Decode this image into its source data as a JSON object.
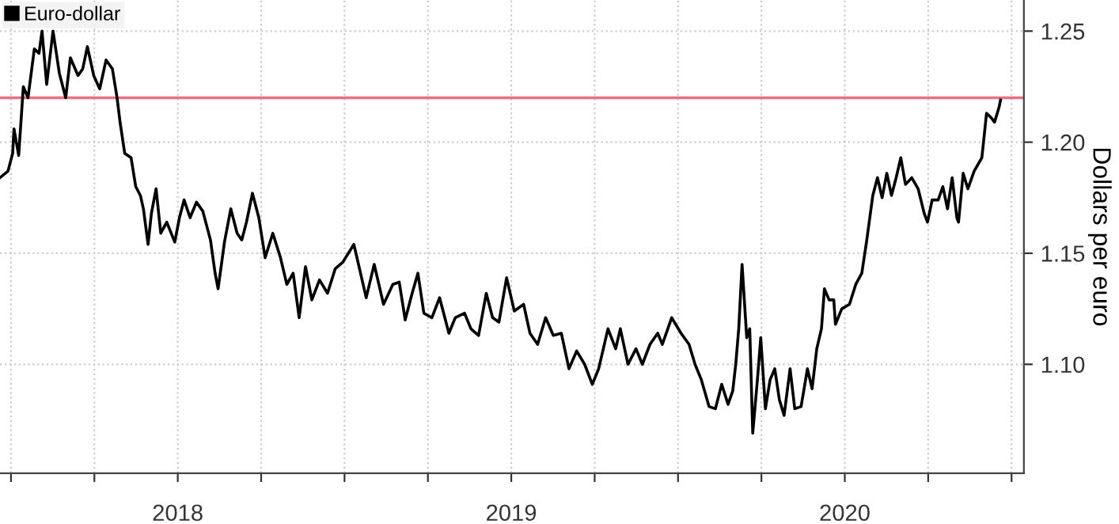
{
  "chart_data": {
    "type": "line",
    "ylabel": "Dollars per euro",
    "x": [
      2017.967,
      2017.991,
      2018.005,
      2018.009,
      2018.023,
      2018.037,
      2018.051,
      2018.07,
      2018.084,
      2018.093,
      2018.107,
      2018.126,
      2018.145,
      2018.164,
      2018.178,
      2018.201,
      2018.215,
      2018.229,
      2018.248,
      2018.266,
      2018.285,
      2018.304,
      2018.318,
      2018.327,
      2018.341,
      2018.36,
      2018.374,
      2018.388,
      2018.397,
      2018.411,
      2018.421,
      2018.435,
      2018.449,
      2018.467,
      2018.491,
      2018.505,
      2018.519,
      2018.537,
      2018.556,
      2018.575,
      2018.598,
      2018.612,
      2018.621,
      2018.64,
      2018.659,
      2018.678,
      2018.692,
      2018.706,
      2018.724,
      2018.743,
      2018.762,
      2018.785,
      2018.808,
      2018.827,
      2018.846,
      2018.864,
      2018.883,
      2018.902,
      2018.925,
      2018.949,
      2018.972,
      2018.995,
      2019.028,
      2019.065,
      2019.089,
      2019.117,
      2019.145,
      2019.164,
      2019.182,
      2019.201,
      2019.22,
      2019.238,
      2019.262,
      2019.285,
      2019.313,
      2019.332,
      2019.36,
      2019.379,
      2019.402,
      2019.425,
      2019.444,
      2019.463,
      2019.486,
      2019.509,
      2019.537,
      2019.556,
      2019.579,
      2019.603,
      2019.626,
      2019.65,
      2019.673,
      2019.696,
      2019.72,
      2019.743,
      2019.762,
      2019.79,
      2019.813,
      2019.827,
      2019.85,
      2019.874,
      2019.893,
      2019.916,
      2019.939,
      2019.953,
      2019.981,
      2020.009,
      2020.033,
      2020.051,
      2020.07,
      2020.093,
      2020.112,
      2020.131,
      2020.15,
      2020.164,
      2020.173,
      2020.182,
      2020.192,
      2020.206,
      2020.215,
      2020.224,
      2020.238,
      2020.248,
      2020.262,
      2020.276,
      2020.29,
      2020.304,
      2020.318,
      2020.336,
      2020.35,
      2020.369,
      2020.388,
      2020.402,
      2020.416,
      2020.43,
      2020.439,
      2020.453,
      2020.467,
      2020.472,
      2020.491,
      2020.514,
      2020.533,
      2020.551,
      2020.565,
      2020.575,
      2020.584,
      2020.598,
      2020.612,
      2020.626,
      2020.64,
      2020.654,
      2020.668,
      2020.682,
      2020.701,
      2020.72,
      2020.738,
      2020.748,
      2020.762,
      2020.78,
      2020.794,
      2020.808,
      2020.822,
      2020.836,
      2020.841,
      2020.855,
      2020.869,
      2020.888,
      2020.911,
      2020.925,
      2020.939,
      2020.949,
      2020.963,
      2020.967
    ],
    "series": [
      {
        "name": "Euro-dollar",
        "color": "#000000",
        "values": [
          1.184,
          1.187,
          1.195,
          1.206,
          1.194,
          1.225,
          1.22,
          1.242,
          1.24,
          1.25,
          1.226,
          1.25,
          1.231,
          1.22,
          1.238,
          1.23,
          1.233,
          1.243,
          1.23,
          1.224,
          1.237,
          1.233,
          1.22,
          1.209,
          1.195,
          1.193,
          1.18,
          1.176,
          1.17,
          1.154,
          1.168,
          1.179,
          1.159,
          1.164,
          1.155,
          1.166,
          1.174,
          1.166,
          1.173,
          1.169,
          1.156,
          1.141,
          1.134,
          1.155,
          1.17,
          1.159,
          1.156,
          1.164,
          1.177,
          1.166,
          1.148,
          1.159,
          1.148,
          1.136,
          1.141,
          1.121,
          1.144,
          1.129,
          1.138,
          1.132,
          1.143,
          1.146,
          1.154,
          1.13,
          1.145,
          1.127,
          1.136,
          1.137,
          1.12,
          1.131,
          1.141,
          1.123,
          1.121,
          1.13,
          1.114,
          1.121,
          1.123,
          1.116,
          1.113,
          1.132,
          1.121,
          1.119,
          1.139,
          1.124,
          1.127,
          1.114,
          1.109,
          1.121,
          1.113,
          1.114,
          1.098,
          1.106,
          1.1,
          1.091,
          1.098,
          1.116,
          1.107,
          1.116,
          1.1,
          1.107,
          1.1,
          1.109,
          1.114,
          1.109,
          1.121,
          1.114,
          1.109,
          1.1,
          1.093,
          1.081,
          1.08,
          1.091,
          1.082,
          1.088,
          1.1,
          1.116,
          1.145,
          1.112,
          1.116,
          1.069,
          1.093,
          1.112,
          1.08,
          1.093,
          1.098,
          1.084,
          1.077,
          1.098,
          1.08,
          1.081,
          1.098,
          1.089,
          1.107,
          1.116,
          1.134,
          1.129,
          1.129,
          1.118,
          1.125,
          1.127,
          1.136,
          1.141,
          1.155,
          1.166,
          1.176,
          1.184,
          1.175,
          1.186,
          1.176,
          1.184,
          1.193,
          1.181,
          1.184,
          1.179,
          1.168,
          1.164,
          1.174,
          1.174,
          1.18,
          1.17,
          1.184,
          1.166,
          1.164,
          1.186,
          1.179,
          1.187,
          1.193,
          1.213,
          1.211,
          1.209,
          1.216,
          1.219
        ]
      }
    ],
    "xlim": [
      2017.967,
      2021.037
    ],
    "xticks": [
      {
        "value": 2018.0,
        "label": null
      },
      {
        "value": 2018.25,
        "label": null
      },
      {
        "value": 2018.5,
        "label": "2018"
      },
      {
        "value": 2018.75,
        "label": null
      },
      {
        "value": 2019.0,
        "label": null
      },
      {
        "value": 2019.25,
        "label": null
      },
      {
        "value": 2019.5,
        "label": "2019"
      },
      {
        "value": 2019.75,
        "label": null
      },
      {
        "value": 2020.0,
        "label": null
      },
      {
        "value": 2020.25,
        "label": null
      },
      {
        "value": 2020.5,
        "label": "2020"
      },
      {
        "value": 2020.75,
        "label": null
      },
      {
        "value": 2021.0,
        "label": null
      }
    ],
    "ylim": [
      1.051,
      1.264
    ],
    "yticks": [
      {
        "value": 1.1,
        "label": "1.10"
      },
      {
        "value": 1.15,
        "label": "1.15"
      },
      {
        "value": 1.2,
        "label": "1.20"
      },
      {
        "value": 1.25,
        "label": "1.25"
      }
    ],
    "ref_lines": [
      {
        "axis": "y",
        "value": 1.22,
        "color": "#e8707f"
      }
    ],
    "grid": true,
    "legend": "top left",
    "marker": "none",
    "line_style": "solid"
  }
}
